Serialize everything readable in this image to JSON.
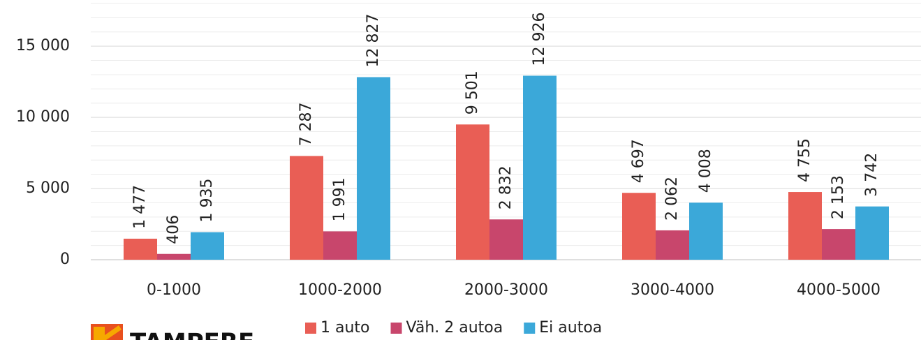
{
  "chart_data": {
    "type": "bar",
    "categories": [
      "0-1000",
      "1000-2000",
      "2000-3000",
      "3000-4000",
      "4000-5000"
    ],
    "series": [
      {
        "name": "1 auto",
        "color": "#e95e55",
        "values": [
          1477,
          7287,
          9501,
          4697,
          4755
        ],
        "value_labels": [
          "1 477",
          "7 287",
          "9 501",
          "4 697",
          "4 755"
        ]
      },
      {
        "name": "Väh. 2 autoa",
        "color": "#c8466c",
        "values": [
          406,
          1991,
          2832,
          2062,
          2153
        ],
        "value_labels": [
          "406",
          "1 991",
          "2 832",
          "2 062",
          "2 153"
        ]
      },
      {
        "name": "Ei autoa",
        "color": "#3ba8d9",
        "values": [
          1935,
          12827,
          12926,
          4008,
          3742
        ],
        "value_labels": [
          "1 935",
          "12 827",
          "12 926",
          "4 008",
          "3 742"
        ]
      }
    ],
    "ylim": [
      0,
      18000
    ],
    "yticks": [
      0,
      {
        "value": 5000,
        "label": "5 000"
      },
      {
        "value": 10000,
        "label": "10 000"
      },
      {
        "value": 15000,
        "label": "15 000"
      }
    ],
    "minor_yticks": [
      1000,
      2000,
      3000,
      4000,
      6000,
      7000,
      8000,
      9000,
      11000,
      12000,
      13000,
      14000,
      16000,
      17000,
      18000
    ],
    "grid": true,
    "legend": "bottom",
    "logo_text": "TAMPERE"
  }
}
